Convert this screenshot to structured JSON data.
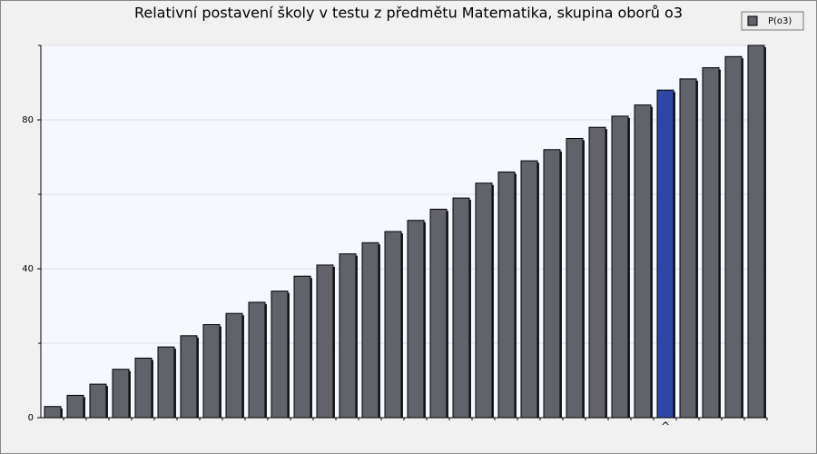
{
  "chart_data": {
    "type": "bar",
    "title": "Relativní postavení školy v testu z předmětu Matematika, skupina oborů o3",
    "series": [
      {
        "name": "P(o3)",
        "color": "#62626a",
        "values": [
          3,
          6,
          9,
          13,
          16,
          19,
          22,
          25,
          28,
          31,
          34,
          38,
          41,
          44,
          47,
          50,
          53,
          56,
          59,
          63,
          66,
          69,
          72,
          75,
          78,
          81,
          84,
          88,
          91,
          94,
          97,
          100
        ]
      }
    ],
    "highlight_index": 27,
    "highlight_color": "#2e47a6",
    "highlight_marker": "^",
    "ylim": [
      0,
      100
    ],
    "yticks": [
      0,
      40,
      80
    ],
    "minor_yticks": [
      20,
      60,
      100
    ],
    "grid": true,
    "legend": "top-right"
  }
}
